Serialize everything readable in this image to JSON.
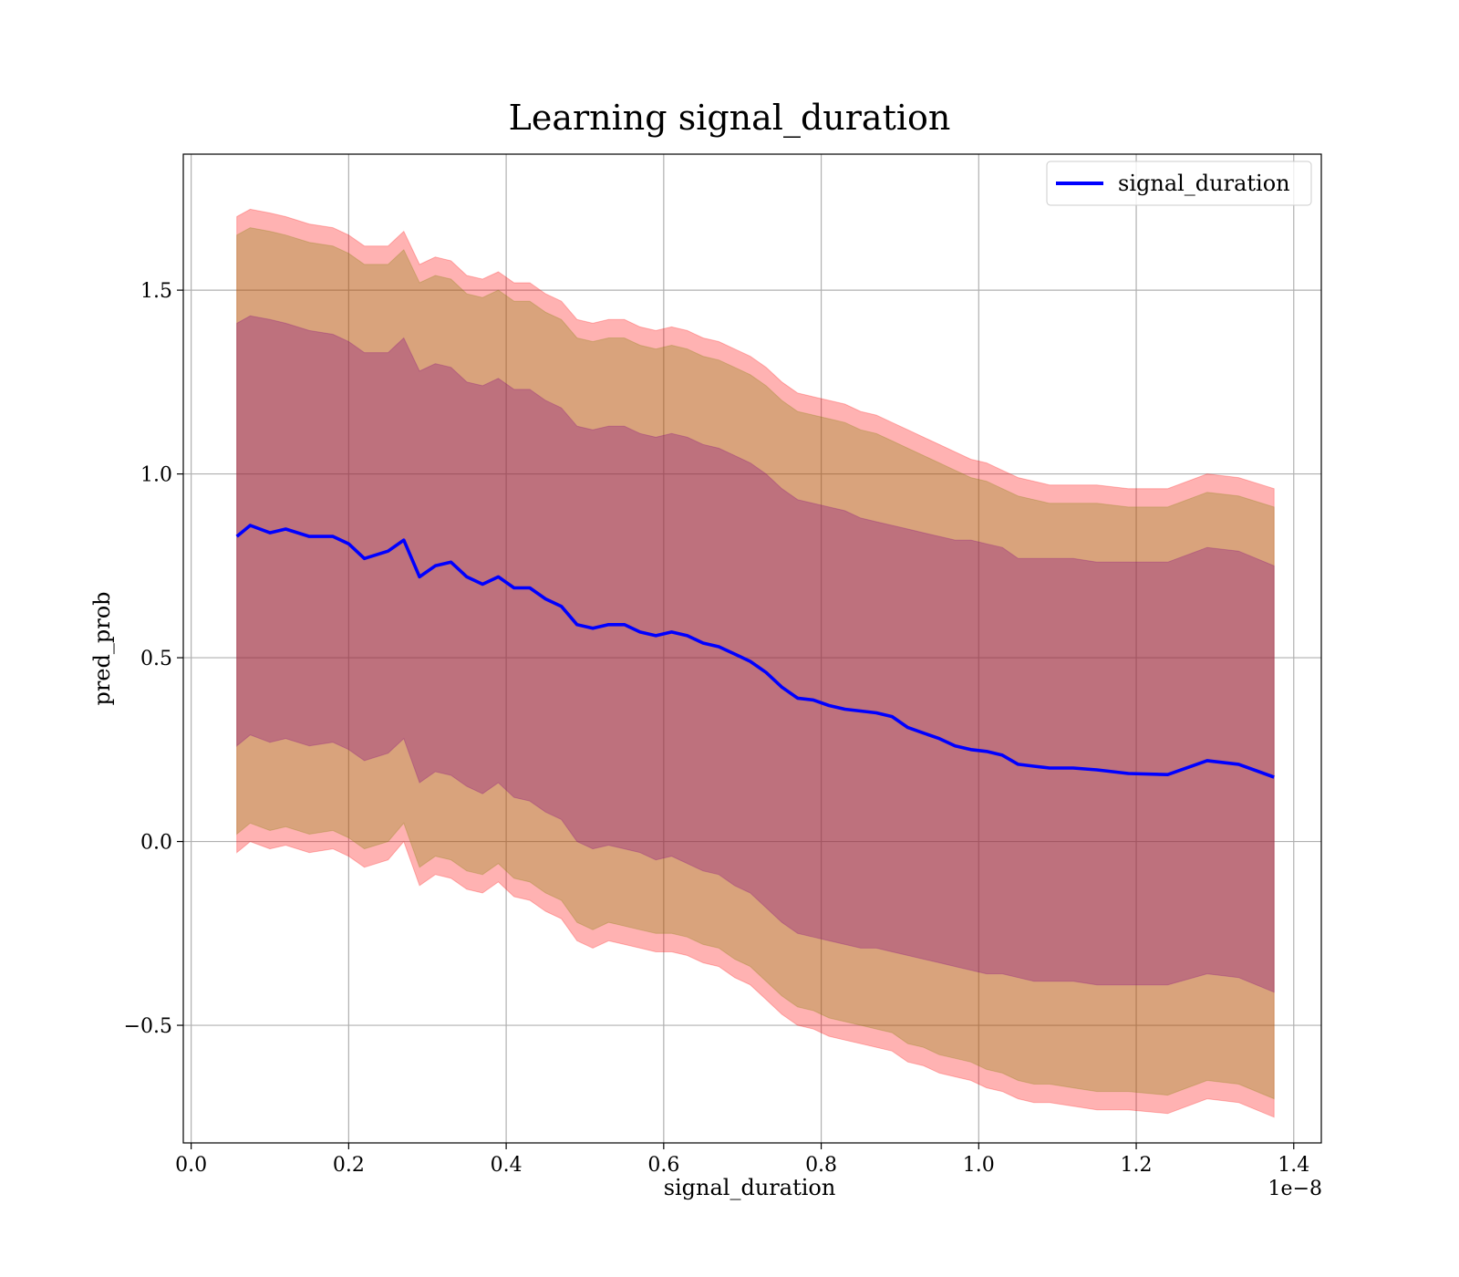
{
  "chart_data": {
    "type": "area",
    "title": "Learning signal_duration",
    "xlabel": "signal_duration",
    "ylabel": "pred_prob",
    "x_offset_label": "1e−8",
    "xlim": [
      -0.01,
      1.435
    ],
    "ylim": [
      -0.82,
      1.87
    ],
    "grid": true,
    "legend_position": "top-right",
    "x_ticks": [
      {
        "value": 0.0,
        "label": "0.0"
      },
      {
        "value": 0.2,
        "label": "0.2"
      },
      {
        "value": 0.4,
        "label": "0.4"
      },
      {
        "value": 0.6,
        "label": "0.6"
      },
      {
        "value": 0.8,
        "label": "0.8"
      },
      {
        "value": 1.0,
        "label": "1.0"
      },
      {
        "value": 1.2,
        "label": "1.2"
      },
      {
        "value": 1.4,
        "label": "1.4"
      }
    ],
    "y_ticks": [
      {
        "value": -0.5,
        "label": "−0.5"
      },
      {
        "value": 0.0,
        "label": "0.0"
      },
      {
        "value": 0.5,
        "label": "0.5"
      },
      {
        "value": 1.0,
        "label": "1.0"
      },
      {
        "value": 1.5,
        "label": "1.5"
      }
    ],
    "x": [
      0.058,
      0.075,
      0.1,
      0.12,
      0.15,
      0.18,
      0.2,
      0.22,
      0.25,
      0.27,
      0.29,
      0.31,
      0.33,
      0.35,
      0.37,
      0.39,
      0.41,
      0.43,
      0.45,
      0.47,
      0.49,
      0.51,
      0.53,
      0.55,
      0.57,
      0.59,
      0.61,
      0.63,
      0.65,
      0.67,
      0.69,
      0.71,
      0.73,
      0.75,
      0.77,
      0.79,
      0.81,
      0.83,
      0.85,
      0.87,
      0.89,
      0.91,
      0.93,
      0.95,
      0.97,
      0.99,
      1.01,
      1.03,
      1.05,
      1.07,
      1.09,
      1.12,
      1.15,
      1.19,
      1.24,
      1.29,
      1.33,
      1.375
    ],
    "series": [
      {
        "name": "signal_duration",
        "color": "#0000ff",
        "values": [
          0.83,
          0.86,
          0.84,
          0.85,
          0.83,
          0.83,
          0.81,
          0.77,
          0.79,
          0.82,
          0.72,
          0.75,
          0.76,
          0.72,
          0.7,
          0.72,
          0.69,
          0.69,
          0.66,
          0.64,
          0.59,
          0.58,
          0.59,
          0.59,
          0.57,
          0.56,
          0.57,
          0.56,
          0.54,
          0.53,
          0.51,
          0.49,
          0.46,
          0.42,
          0.39,
          0.385,
          0.37,
          0.36,
          0.355,
          0.35,
          0.34,
          0.31,
          0.295,
          0.28,
          0.26,
          0.25,
          0.245,
          0.235,
          0.21,
          0.205,
          0.2,
          0.2,
          0.195,
          0.185,
          0.182,
          0.22,
          0.21,
          0.175
        ]
      }
    ],
    "bands": [
      {
        "color": "#ff0000",
        "opacity": 0.3,
        "upper": [
          1.7,
          1.72,
          1.71,
          1.7,
          1.68,
          1.67,
          1.65,
          1.62,
          1.62,
          1.66,
          1.57,
          1.59,
          1.58,
          1.54,
          1.53,
          1.55,
          1.52,
          1.52,
          1.49,
          1.47,
          1.42,
          1.41,
          1.42,
          1.42,
          1.4,
          1.39,
          1.4,
          1.39,
          1.37,
          1.36,
          1.34,
          1.32,
          1.29,
          1.25,
          1.22,
          1.21,
          1.2,
          1.19,
          1.17,
          1.16,
          1.14,
          1.12,
          1.1,
          1.08,
          1.06,
          1.04,
          1.03,
          1.01,
          0.99,
          0.98,
          0.97,
          0.97,
          0.97,
          0.96,
          0.96,
          1.0,
          0.99,
          0.96
        ],
        "lower": [
          -0.03,
          0.0,
          -0.02,
          -0.01,
          -0.03,
          -0.02,
          -0.04,
          -0.07,
          -0.05,
          0.0,
          -0.12,
          -0.09,
          -0.1,
          -0.13,
          -0.14,
          -0.11,
          -0.15,
          -0.16,
          -0.19,
          -0.21,
          -0.27,
          -0.29,
          -0.27,
          -0.28,
          -0.29,
          -0.3,
          -0.3,
          -0.31,
          -0.33,
          -0.34,
          -0.37,
          -0.39,
          -0.43,
          -0.47,
          -0.5,
          -0.51,
          -0.53,
          -0.54,
          -0.55,
          -0.56,
          -0.57,
          -0.6,
          -0.61,
          -0.63,
          -0.64,
          -0.65,
          -0.67,
          -0.68,
          -0.7,
          -0.71,
          -0.71,
          -0.72,
          -0.73,
          -0.73,
          -0.74,
          -0.7,
          -0.71,
          -0.75
        ]
      },
      {
        "color": "#808000",
        "opacity": 0.3,
        "upper": [
          1.65,
          1.67,
          1.66,
          1.65,
          1.63,
          1.62,
          1.6,
          1.57,
          1.57,
          1.61,
          1.52,
          1.54,
          1.53,
          1.49,
          1.48,
          1.5,
          1.47,
          1.47,
          1.44,
          1.42,
          1.37,
          1.36,
          1.37,
          1.37,
          1.35,
          1.34,
          1.35,
          1.34,
          1.32,
          1.31,
          1.29,
          1.27,
          1.24,
          1.2,
          1.17,
          1.16,
          1.15,
          1.14,
          1.12,
          1.11,
          1.09,
          1.07,
          1.05,
          1.03,
          1.01,
          0.99,
          0.98,
          0.96,
          0.94,
          0.93,
          0.92,
          0.92,
          0.92,
          0.91,
          0.91,
          0.95,
          0.94,
          0.91
        ],
        "lower": [
          0.02,
          0.05,
          0.03,
          0.04,
          0.02,
          0.03,
          0.01,
          -0.02,
          0.0,
          0.05,
          -0.07,
          -0.04,
          -0.05,
          -0.08,
          -0.09,
          -0.06,
          -0.1,
          -0.11,
          -0.14,
          -0.16,
          -0.22,
          -0.24,
          -0.22,
          -0.23,
          -0.24,
          -0.25,
          -0.25,
          -0.26,
          -0.28,
          -0.29,
          -0.32,
          -0.34,
          -0.38,
          -0.42,
          -0.45,
          -0.46,
          -0.48,
          -0.49,
          -0.5,
          -0.51,
          -0.52,
          -0.55,
          -0.56,
          -0.58,
          -0.59,
          -0.6,
          -0.62,
          -0.63,
          -0.65,
          -0.66,
          -0.66,
          -0.67,
          -0.68,
          -0.68,
          -0.69,
          -0.65,
          -0.66,
          -0.7
        ]
      },
      {
        "color": "#800080",
        "opacity": 0.3,
        "upper": [
          1.41,
          1.43,
          1.42,
          1.41,
          1.39,
          1.38,
          1.36,
          1.33,
          1.33,
          1.37,
          1.28,
          1.3,
          1.29,
          1.25,
          1.24,
          1.26,
          1.23,
          1.23,
          1.2,
          1.18,
          1.13,
          1.12,
          1.13,
          1.13,
          1.11,
          1.1,
          1.11,
          1.1,
          1.08,
          1.07,
          1.05,
          1.03,
          1.0,
          0.96,
          0.93,
          0.92,
          0.91,
          0.9,
          0.88,
          0.87,
          0.86,
          0.85,
          0.84,
          0.83,
          0.82,
          0.82,
          0.81,
          0.8,
          0.77,
          0.77,
          0.77,
          0.77,
          0.76,
          0.76,
          0.76,
          0.8,
          0.79,
          0.75
        ],
        "lower": [
          0.26,
          0.29,
          0.27,
          0.28,
          0.26,
          0.27,
          0.25,
          0.22,
          0.24,
          0.28,
          0.16,
          0.19,
          0.18,
          0.15,
          0.13,
          0.16,
          0.12,
          0.11,
          0.08,
          0.06,
          0.0,
          -0.02,
          -0.01,
          -0.02,
          -0.03,
          -0.05,
          -0.04,
          -0.06,
          -0.08,
          -0.09,
          -0.12,
          -0.14,
          -0.18,
          -0.22,
          -0.25,
          -0.26,
          -0.27,
          -0.28,
          -0.29,
          -0.29,
          -0.3,
          -0.31,
          -0.32,
          -0.33,
          -0.34,
          -0.35,
          -0.36,
          -0.36,
          -0.37,
          -0.38,
          -0.38,
          -0.38,
          -0.39,
          -0.39,
          -0.39,
          -0.36,
          -0.37,
          -0.41
        ]
      }
    ]
  }
}
